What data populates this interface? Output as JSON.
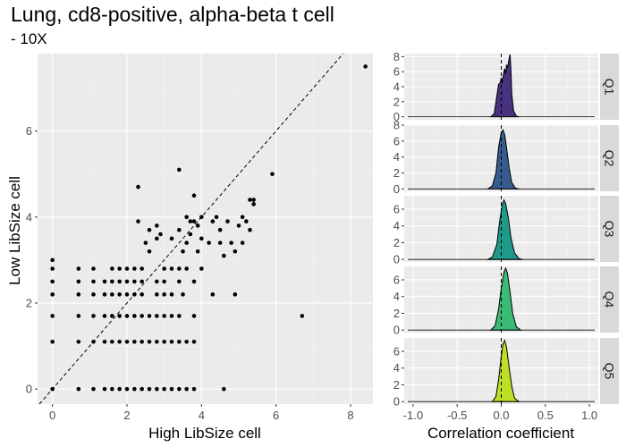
{
  "chart_data": [
    {
      "type": "scatter",
      "title": "Lung, cd8-positive, alpha-beta t cell",
      "subtitle": "- 10X",
      "xlabel": "High LibSize cell",
      "ylabel": "Low LibSize cell",
      "xlim": [
        -0.4,
        8.6
      ],
      "ylim": [
        -0.35,
        7.8
      ],
      "xticks": [
        0,
        2,
        4,
        6,
        8
      ],
      "yticks": [
        0,
        2,
        4,
        6
      ],
      "reference_line": "y = x (dashed)",
      "grid": true,
      "points": [
        [
          0,
          0
        ],
        [
          0,
          1.1
        ],
        [
          0,
          1.7
        ],
        [
          0,
          2.2
        ],
        [
          0,
          2.5
        ],
        [
          0,
          2.8
        ],
        [
          0,
          3.0
        ],
        [
          0.7,
          0
        ],
        [
          0.7,
          1.1
        ],
        [
          0.7,
          1.7
        ],
        [
          0.7,
          2.2
        ],
        [
          0.7,
          2.5
        ],
        [
          0.7,
          2.8
        ],
        [
          1.1,
          0
        ],
        [
          1.1,
          1.1
        ],
        [
          1.1,
          1.7
        ],
        [
          1.1,
          2.2
        ],
        [
          1.1,
          2.5
        ],
        [
          1.1,
          2.8
        ],
        [
          1.4,
          0
        ],
        [
          1.4,
          1.1
        ],
        [
          1.4,
          1.7
        ],
        [
          1.4,
          2.2
        ],
        [
          1.4,
          2.5
        ],
        [
          1.6,
          0
        ],
        [
          1.6,
          1.1
        ],
        [
          1.6,
          1.7
        ],
        [
          1.6,
          2.2
        ],
        [
          1.6,
          2.5
        ],
        [
          1.6,
          2.8
        ],
        [
          1.8,
          0
        ],
        [
          1.8,
          1.1
        ],
        [
          1.8,
          1.7
        ],
        [
          1.8,
          2.2
        ],
        [
          1.8,
          2.5
        ],
        [
          1.8,
          2.8
        ],
        [
          2.0,
          0
        ],
        [
          2.0,
          1.1
        ],
        [
          2.0,
          1.7
        ],
        [
          2.0,
          2.2
        ],
        [
          2.0,
          2.5
        ],
        [
          2.0,
          2.8
        ],
        [
          2.2,
          0
        ],
        [
          2.2,
          1.1
        ],
        [
          2.2,
          1.7
        ],
        [
          2.2,
          2.2
        ],
        [
          2.2,
          2.5
        ],
        [
          2.2,
          2.8
        ],
        [
          2.3,
          3.9
        ],
        [
          2.3,
          4.7
        ],
        [
          2.4,
          0
        ],
        [
          2.4,
          1.1
        ],
        [
          2.4,
          1.7
        ],
        [
          2.4,
          2.2
        ],
        [
          2.4,
          2.5
        ],
        [
          2.4,
          2.8
        ],
        [
          2.5,
          3.4
        ],
        [
          2.6,
          0
        ],
        [
          2.6,
          1.1
        ],
        [
          2.6,
          1.7
        ],
        [
          2.6,
          3.2
        ],
        [
          2.6,
          3.7
        ],
        [
          2.8,
          0
        ],
        [
          2.8,
          1.1
        ],
        [
          2.8,
          1.7
        ],
        [
          2.8,
          2.2
        ],
        [
          2.8,
          2.5
        ],
        [
          2.8,
          3.5
        ],
        [
          2.8,
          3.8
        ],
        [
          2.9,
          3.6
        ],
        [
          3.0,
          0
        ],
        [
          3.0,
          1.1
        ],
        [
          3.0,
          1.7
        ],
        [
          3.0,
          2.2
        ],
        [
          3.0,
          2.5
        ],
        [
          3.0,
          2.8
        ],
        [
          3.2,
          0
        ],
        [
          3.2,
          1.1
        ],
        [
          3.2,
          1.7
        ],
        [
          3.2,
          2.2
        ],
        [
          3.2,
          2.8
        ],
        [
          3.2,
          3.5
        ],
        [
          3.4,
          0
        ],
        [
          3.4,
          1.1
        ],
        [
          3.4,
          1.7
        ],
        [
          3.4,
          2.5
        ],
        [
          3.4,
          2.8
        ],
        [
          3.4,
          3.7
        ],
        [
          3.4,
          5.1
        ],
        [
          3.5,
          2.2
        ],
        [
          3.5,
          3.2
        ],
        [
          3.6,
          0
        ],
        [
          3.6,
          1.1
        ],
        [
          3.6,
          2.8
        ],
        [
          3.6,
          3.4
        ],
        [
          3.6,
          4.0
        ],
        [
          3.7,
          3.9
        ],
        [
          3.7,
          3.6
        ],
        [
          3.8,
          0
        ],
        [
          3.8,
          1.1
        ],
        [
          3.8,
          1.7
        ],
        [
          3.8,
          2.5
        ],
        [
          3.8,
          3.9
        ],
        [
          3.8,
          4.5
        ],
        [
          3.9,
          3.8
        ],
        [
          3.9,
          3.2
        ],
        [
          4.0,
          2.8
        ],
        [
          4.0,
          3.5
        ],
        [
          4.0,
          4.0
        ],
        [
          4.2,
          3.4
        ],
        [
          4.3,
          3.9
        ],
        [
          4.3,
          2.2
        ],
        [
          4.4,
          4.0
        ],
        [
          4.5,
          3.7
        ],
        [
          4.5,
          3.4
        ],
        [
          4.6,
          0
        ],
        [
          4.6,
          3.1
        ],
        [
          4.7,
          3.9
        ],
        [
          4.8,
          3.4
        ],
        [
          4.9,
          3.2
        ],
        [
          4.9,
          2.2
        ],
        [
          5.0,
          3.8
        ],
        [
          5.1,
          4.0
        ],
        [
          5.1,
          3.4
        ],
        [
          5.2,
          3.9
        ],
        [
          5.3,
          3.7
        ],
        [
          5.3,
          4.4
        ],
        [
          5.4,
          4.4
        ],
        [
          5.4,
          4.3
        ],
        [
          5.9,
          5.0
        ],
        [
          6.7,
          1.7
        ],
        [
          8.4,
          7.5
        ]
      ]
    },
    {
      "type": "area",
      "xlabel": "Correlation coefficient",
      "xlim": [
        -1.1,
        1.1
      ],
      "xticks": [
        -1.0,
        -0.5,
        0.0,
        0.5,
        1.0
      ],
      "xtick_labels": [
        "-1.0",
        "-0.5",
        "0.0",
        "0.5",
        "1.0"
      ],
      "reference_line": "x = 0 (dashed)",
      "panels": [
        {
          "label": "Q1",
          "color": "#46327e",
          "ylim": [
            -0.4,
            8.4
          ],
          "yticks": [
            0,
            2,
            4,
            6,
            8
          ],
          "x": [
            -0.12,
            -0.08,
            -0.05,
            -0.03,
            -0.01,
            0.0,
            0.01,
            0.02,
            0.03,
            0.04,
            0.05,
            0.06,
            0.07,
            0.08,
            0.09,
            0.1,
            0.11,
            0.12,
            0.14,
            0.17,
            0.2
          ],
          "y": [
            0,
            0.4,
            2.8,
            4.3,
            4.6,
            5.2,
            4.5,
            5.3,
            6.0,
            6.4,
            5.7,
            6.9,
            6.6,
            7.1,
            7.8,
            8.3,
            6.0,
            3.0,
            0.8,
            0.1,
            0
          ]
        },
        {
          "label": "Q2",
          "color": "#365c8d",
          "ylim": [
            -0.3,
            8.0
          ],
          "yticks": [
            0,
            2,
            4,
            6,
            8
          ],
          "x": [
            -0.15,
            -0.1,
            -0.06,
            -0.03,
            0.0,
            0.02,
            0.04,
            0.06,
            0.09,
            0.12,
            0.16,
            0.2
          ],
          "y": [
            0,
            0.4,
            2.0,
            5.2,
            7.1,
            7.4,
            6.8,
            5.2,
            2.6,
            0.8,
            0.1,
            0
          ]
        },
        {
          "label": "Q3",
          "color": "#1f9a8a",
          "ylim": [
            -0.3,
            7.6
          ],
          "yticks": [
            0,
            2,
            4,
            6
          ],
          "x": [
            -0.15,
            -0.1,
            -0.05,
            -0.02,
            0.01,
            0.03,
            0.05,
            0.08,
            0.11,
            0.15,
            0.2,
            0.24
          ],
          "y": [
            0,
            0.3,
            1.8,
            4.4,
            6.5,
            7.1,
            6.7,
            5.0,
            2.6,
            0.8,
            0.1,
            0
          ]
        },
        {
          "label": "Q4",
          "color": "#3bbb75",
          "ylim": [
            -0.3,
            7.6
          ],
          "yticks": [
            0,
            2,
            4,
            6
          ],
          "x": [
            -0.12,
            -0.07,
            -0.03,
            0.0,
            0.03,
            0.05,
            0.07,
            0.1,
            0.13,
            0.17,
            0.22
          ],
          "y": [
            0,
            0.5,
            2.5,
            5.0,
            6.9,
            7.4,
            6.8,
            4.5,
            2.0,
            0.4,
            0
          ]
        },
        {
          "label": "Q5",
          "color": "#bddf26",
          "ylim": [
            -0.3,
            7.6
          ],
          "yticks": [
            0,
            2,
            4,
            6
          ],
          "x": [
            -0.1,
            -0.06,
            -0.03,
            0.0,
            0.02,
            0.04,
            0.06,
            0.09,
            0.12,
            0.15,
            0.2
          ],
          "y": [
            0,
            0.6,
            2.6,
            5.4,
            6.9,
            7.3,
            6.5,
            4.0,
            1.8,
            0.4,
            0
          ]
        }
      ]
    }
  ]
}
